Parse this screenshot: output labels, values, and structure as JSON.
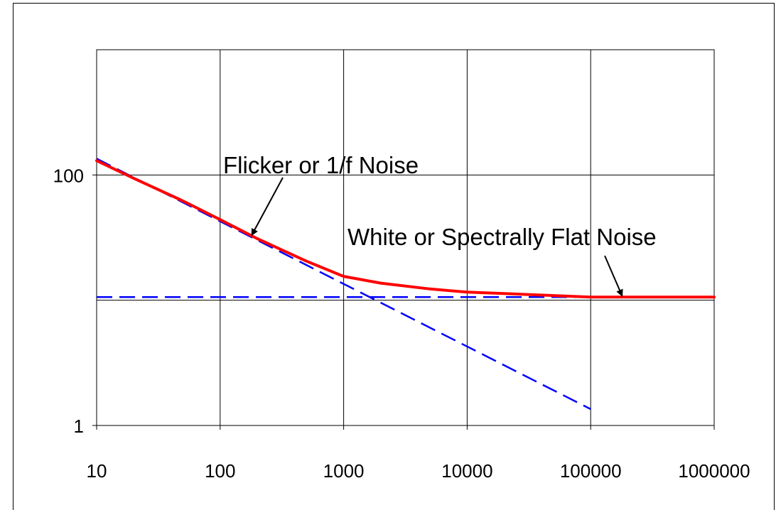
{
  "chart_data": {
    "type": "line",
    "title": "",
    "xlabel": "",
    "ylabel": "",
    "x_scale": "log",
    "y_scale": "log",
    "xlim": [
      10,
      1000000
    ],
    "ylim": [
      1,
      1000
    ],
    "grid": true,
    "x_ticks": [
      10,
      100,
      1000,
      10000,
      100000,
      1000000
    ],
    "x_tick_labels": [
      "10",
      "100",
      "1000",
      "10000",
      "100000",
      "1000000"
    ],
    "y_ticks": [
      1,
      100
    ],
    "y_tick_labels": [
      "1",
      "100"
    ],
    "series": [
      {
        "style": "solid",
        "color": "#ff0000",
        "x": [
          10,
          20,
          50,
          100,
          200,
          500,
          1000,
          2000,
          5000,
          10000,
          20000,
          50000,
          100000,
          1000000
        ],
        "y": [
          130,
          94,
          62,
          44,
          31,
          20.5,
          15.5,
          13.7,
          12.3,
          11.6,
          11.3,
          10.9,
          10.6,
          10.6
        ]
      },
      {
        "style": "dashed",
        "color": "#0000ff",
        "x": [
          10,
          100000
        ],
        "y": [
          135,
          1.35
        ]
      },
      {
        "style": "dashed",
        "color": "#0000ff",
        "x": [
          10,
          1000000
        ],
        "y": [
          10.6,
          10.6
        ]
      }
    ],
    "annotations": [
      {
        "text": "Flicker or 1/f Noise",
        "arrow_to": [
          180,
          33
        ]
      },
      {
        "text": "White or Spectrally Flat Noise",
        "arrow_to": [
          180000,
          10.8
        ]
      }
    ]
  }
}
